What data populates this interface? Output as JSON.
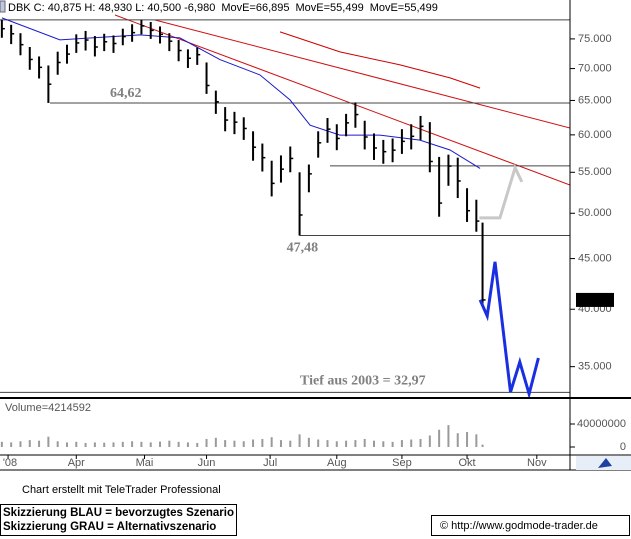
{
  "chart_data": {
    "type": "ohlc",
    "header": [
      {
        "text": "DBK C: 40,875 H: 48,930 L: 40,500 -6,980",
        "color": "#000000"
      },
      {
        "text": "MovE=66,895",
        "color": "#cc0000"
      },
      {
        "text": "MovE=55,499",
        "color": "#1a1acc"
      },
      {
        "text": "MovE=55,499",
        "color": "#1a1acc"
      }
    ],
    "x": [
      0,
      3,
      6,
      9,
      12,
      15,
      18,
      21,
      24,
      27,
      30,
      33,
      36,
      39,
      42,
      45,
      48,
      51,
      54,
      57,
      60,
      63,
      66,
      69,
      72,
      75,
      78,
      81,
      84,
      87,
      90,
      93,
      96,
      99,
      102,
      105,
      108,
      111,
      114,
      117,
      120,
      123,
      126,
      129,
      132,
      135,
      138,
      141,
      144,
      147,
      150,
      153,
      155
    ],
    "high": [
      78400,
      77500,
      76000,
      73600,
      72000,
      70500,
      72800,
      74000,
      75800,
      76400,
      75500,
      75900,
      75600,
      76800,
      77600,
      78400,
      78000,
      77200,
      76000,
      74800,
      73200,
      73500,
      71000,
      66500,
      64000,
      63300,
      62500,
      60500,
      58800,
      56500,
      57200,
      58400,
      55000,
      56000,
      60500,
      62400,
      61500,
      63000,
      64700,
      62000,
      60200,
      59300,
      59500,
      60800,
      61500,
      62700,
      61800,
      57000,
      57300,
      56900,
      53000,
      51600,
      48930
    ],
    "low": [
      75200,
      74100,
      72200,
      69800,
      68400,
      64620,
      69000,
      70800,
      72600,
      73000,
      72000,
      72900,
      72600,
      73900,
      74500,
      75800,
      75000,
      74200,
      72900,
      71200,
      70100,
      70600,
      66000,
      63000,
      60500,
      60100,
      59300,
      56500,
      55100,
      52000,
      53700,
      55000,
      47480,
      52500,
      56900,
      58900,
      57900,
      59800,
      61000,
      58000,
      56600,
      56100,
      56300,
      57400,
      58000,
      59300,
      55000,
      49600,
      53300,
      51800,
      49000,
      47900,
      40500
    ],
    "close": [
      76800,
      75900,
      74000,
      71500,
      70200,
      67500,
      71000,
      72400,
      74300,
      74800,
      73600,
      74500,
      74200,
      75400,
      76100,
      77300,
      76500,
      75800,
      74600,
      73000,
      71700,
      72300,
      67300,
      64800,
      62100,
      61800,
      60900,
      58300,
      56900,
      53600,
      55400,
      56800,
      49800,
      54800,
      58900,
      60800,
      59500,
      61700,
      62900,
      59700,
      58200,
      57700,
      57900,
      59100,
      59800,
      61200,
      56400,
      51200,
      55800,
      53900,
      50300,
      49100,
      40875
    ],
    "volume": [
      9000000,
      8000000,
      10000000,
      12000000,
      11000000,
      18000000,
      10000000,
      8000000,
      9000000,
      7000000,
      8000000,
      7500000,
      8000000,
      9000000,
      10000000,
      9000000,
      8000000,
      9500000,
      11000000,
      9000000,
      8000000,
      7000000,
      14000000,
      16000000,
      12000000,
      11000000,
      10000000,
      13000000,
      14000000,
      17000000,
      12000000,
      11000000,
      22000000,
      16000000,
      13000000,
      12000000,
      10000000,
      11000000,
      12000000,
      14000000,
      11000000,
      10000000,
      9000000,
      12000000,
      13000000,
      14000000,
      20000000,
      30000000,
      38000000,
      24000000,
      26000000,
      22000000,
      4214592
    ],
    "bar_color": "#000000",
    "volume_color": "#9a9a9a",
    "volume_label": "Volume=4214592",
    "last_label": {
      "value": 40875,
      "label": "40,875"
    },
    "averages": [
      {
        "color": "#cc0000",
        "x": [
          89.7,
          109,
          128.4,
          144.5,
          154.2
        ],
        "values": [
          76230,
          72770,
          70600,
          68500,
          66895
        ]
      },
      {
        "color": "#1a1acc",
        "x": [
          0,
          18.7,
          44.5,
          57.4,
          70.3,
          83.2,
          92.9,
          99.4,
          109,
          121.9,
          134.8,
          144.5,
          154.2
        ],
        "values": [
          78750,
          74830,
          75700,
          75170,
          71470,
          68980,
          65080,
          61370,
          59970,
          59970,
          59280,
          57920,
          55499
        ]
      }
    ],
    "scenarios": [
      {
        "color": "#1a2fe0",
        "x": [
          154.2,
          156.5,
          159,
          164,
          167,
          170,
          173
        ],
        "values": [
          40875,
          39380,
          44660,
          33000,
          35380,
          32850,
          35710
        ]
      },
      {
        "color": "#c8c8c8",
        "x": [
          154,
          160.6,
          165.5,
          167.7
        ],
        "values": [
          49460,
          49460,
          55570,
          53780
        ]
      }
    ],
    "hlines": [
      {
        "value": 78400,
        "x0": -0.6
      },
      {
        "value": 64620,
        "x0": 15.5,
        "label": "64,62"
      },
      {
        "value": 55820,
        "x0": 105.8
      },
      {
        "value": 47480,
        "x0": 96,
        "label": "47,48"
      },
      {
        "value": 32970,
        "x0": -0.6,
        "label": "Tief aus 2003  =  32,97"
      }
    ],
    "log_scale": true,
    "xlim": [
      -0.6,
      183.2
    ],
    "ylim": [
      32540,
      82100
    ],
    "yticks": [
      {
        "value": 35000,
        "label": "35.000"
      },
      {
        "value": 40000,
        "label": "40.000"
      },
      {
        "value": 45000,
        "label": "45.000"
      },
      {
        "value": 50000,
        "label": "50.000"
      },
      {
        "value": 55000,
        "label": "55.000"
      },
      {
        "value": 60000,
        "label": "60.000"
      },
      {
        "value": 65000,
        "label": "65.000"
      },
      {
        "value": 70000,
        "label": "70.000"
      },
      {
        "value": 75000,
        "label": "75.000"
      }
    ],
    "xticks": [
      {
        "value": 2,
        "label": "'08"
      },
      {
        "value": 24,
        "label": "Apr"
      },
      {
        "value": 46,
        "label": "Mai"
      },
      {
        "value": 66,
        "label": "Jun"
      },
      {
        "value": 86.5,
        "label": "Jul"
      },
      {
        "value": 108,
        "label": "Aug"
      },
      {
        "value": 129,
        "label": "Sep"
      },
      {
        "value": 150,
        "label": "Okt"
      },
      {
        "value": 172.5,
        "label": "Nov"
      }
    ],
    "vlim": [
      -13900000,
      81700000
    ],
    "vticks": [
      0,
      40000000
    ]
  },
  "footer": {
    "credit": "Chart erstellt mit TeleTrader Professional",
    "legend": [
      "Skizzierung BLAU = bevorzugtes Szenario",
      "Skizzierung GRAU = Alternativszenario"
    ],
    "copyright": "© http://www.godmode-trader.de"
  }
}
